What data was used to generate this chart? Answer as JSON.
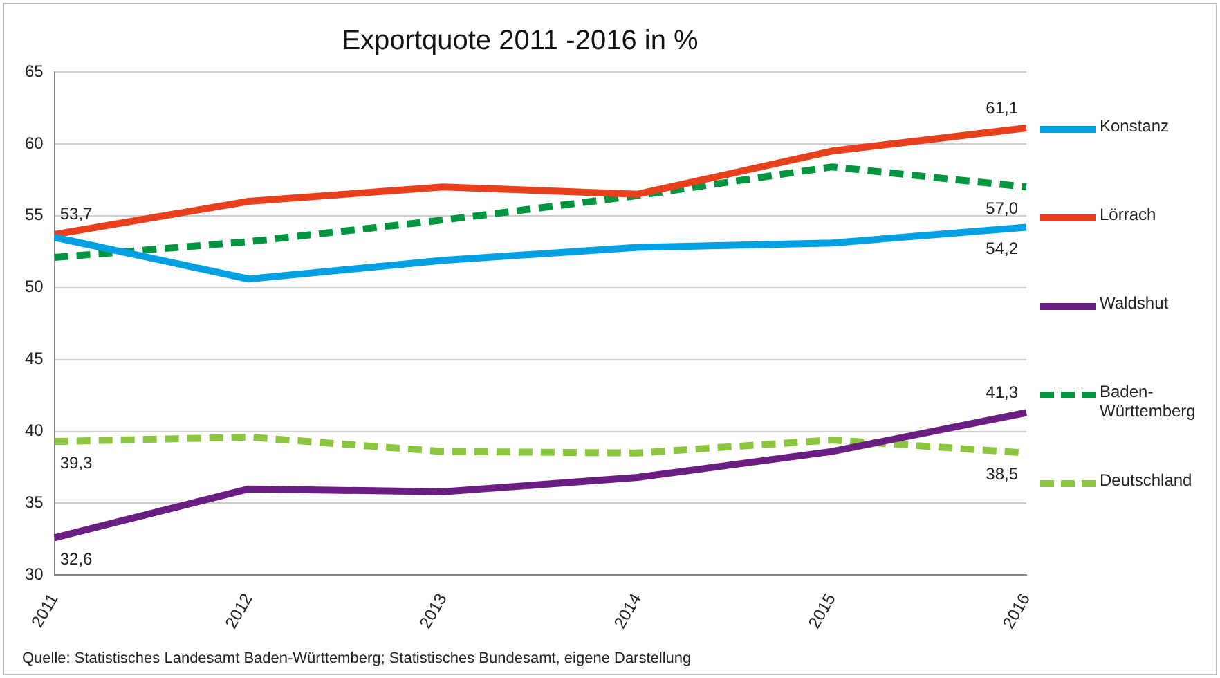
{
  "chart_data": {
    "type": "line",
    "title": "Exportquote 2011 -2016 in %",
    "categories": [
      "2011",
      "2012",
      "2013",
      "2014",
      "2015",
      "2016"
    ],
    "series": [
      {
        "name": "Konstanz",
        "color": "#00a0e3",
        "values": [
          53.5,
          50.6,
          51.9,
          52.8,
          53.1,
          54.2
        ],
        "value_labels": [
          null,
          null,
          null,
          null,
          null,
          "54,2"
        ]
      },
      {
        "name": "Lörrach",
        "color": "#e8401c",
        "values": [
          53.7,
          56.0,
          57.0,
          56.5,
          59.5,
          61.1
        ],
        "value_labels": [
          "53,7",
          null,
          null,
          null,
          null,
          "61,1"
        ]
      },
      {
        "name": "Waldshut",
        "color": "#6b1e82",
        "values": [
          32.6,
          36.0,
          35.8,
          36.8,
          38.6,
          41.3
        ],
        "value_labels": [
          "32,6",
          null,
          null,
          null,
          null,
          "41,3"
        ]
      },
      {
        "name": "Baden-Württemberg",
        "color": "#009640",
        "line_style": "dashed",
        "values": [
          52.1,
          53.2,
          54.7,
          56.4,
          58.4,
          57.0
        ],
        "value_labels": [
          null,
          null,
          null,
          null,
          null,
          "57,0"
        ]
      },
      {
        "name": "Deutschland",
        "color": "#8cc63f",
        "line_style": "dashed",
        "values": [
          39.3,
          39.6,
          38.6,
          38.5,
          39.4,
          38.5
        ],
        "value_labels": [
          "39,3",
          null,
          null,
          null,
          null,
          "38,5"
        ]
      }
    ],
    "ylim": [
      30,
      65
    ],
    "yticks": [
      30,
      35,
      40,
      45,
      50,
      55,
      60,
      65
    ],
    "grid": "y",
    "legend": "right",
    "line_style": "solid",
    "marker": "none",
    "annotations": [
      "Quelle: Statistisches Landesamt Baden-Württemberg; Statistisches Bundesamt, eigene Darstellung"
    ]
  }
}
